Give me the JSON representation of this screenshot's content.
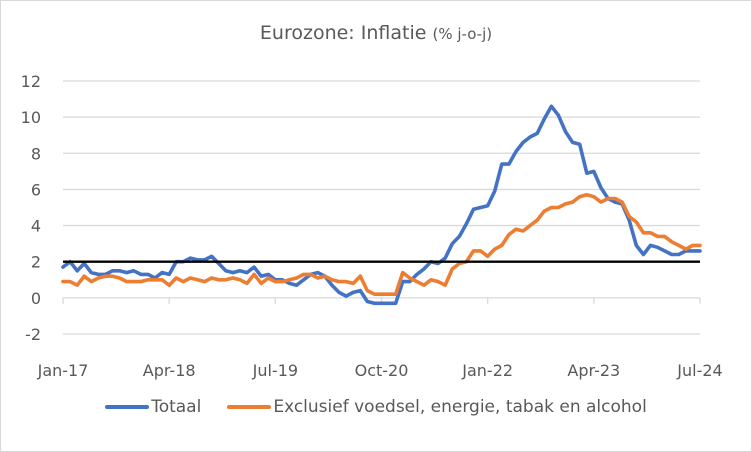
{
  "chart_data": {
    "type": "line",
    "title": "Eurozone: Inflatie",
    "title_unit": "(% j-o-j)",
    "xlabel": "",
    "ylabel": "",
    "ylim": [
      -2,
      12
    ],
    "yticks": [
      "-2",
      "0",
      "2",
      "4",
      "6",
      "8",
      "10",
      "12"
    ],
    "ytick_values": [
      -2,
      0,
      2,
      4,
      6,
      8,
      10,
      12
    ],
    "xtick_labels": [
      "Jan-17",
      "Apr-18",
      "Jul-19",
      "Oct-20",
      "Jan-22",
      "Apr-23",
      "Jul-24"
    ],
    "xtick_index": [
      0,
      15,
      30,
      45,
      60,
      75,
      90
    ],
    "grid": true,
    "legend_position": "bottom",
    "reference_line": {
      "value": 2,
      "color": "#000000"
    },
    "x_start": "Jan-17",
    "x_end": "Jul-24",
    "series": [
      {
        "name": "Totaal",
        "color": "#4472c4",
        "values": [
          1.7,
          2.0,
          1.5,
          1.9,
          1.4,
          1.3,
          1.3,
          1.5,
          1.5,
          1.4,
          1.5,
          1.3,
          1.3,
          1.1,
          1.4,
          1.3,
          2.0,
          2.0,
          2.2,
          2.1,
          2.1,
          2.3,
          1.9,
          1.5,
          1.4,
          1.5,
          1.4,
          1.7,
          1.2,
          1.3,
          1.0,
          1.0,
          0.8,
          0.7,
          1.0,
          1.3,
          1.4,
          1.2,
          0.7,
          0.3,
          0.1,
          0.3,
          0.4,
          -0.2,
          -0.3,
          -0.3,
          -0.3,
          -0.3,
          0.9,
          0.9,
          1.3,
          1.6,
          2.0,
          1.9,
          2.2,
          3.0,
          3.4,
          4.1,
          4.9,
          5.0,
          5.1,
          5.9,
          7.4,
          7.4,
          8.1,
          8.6,
          8.9,
          9.1,
          9.9,
          10.6,
          10.1,
          9.2,
          8.6,
          8.5,
          6.9,
          7.0,
          6.1,
          5.5,
          5.3,
          5.2,
          4.3,
          2.9,
          2.4,
          2.9,
          2.8,
          2.6,
          2.4,
          2.4,
          2.6,
          2.6,
          2.6
        ]
      },
      {
        "name": "Exclusief voedsel, energie, tabak en alcohol",
        "color": "#ed7d31",
        "values": [
          0.9,
          0.9,
          0.7,
          1.2,
          0.9,
          1.1,
          1.2,
          1.2,
          1.1,
          0.9,
          0.9,
          0.9,
          1.0,
          1.0,
          1.0,
          0.7,
          1.1,
          0.9,
          1.1,
          1.0,
          0.9,
          1.1,
          1.0,
          1.0,
          1.1,
          1.0,
          0.8,
          1.3,
          0.8,
          1.1,
          0.9,
          0.9,
          1.0,
          1.1,
          1.3,
          1.3,
          1.1,
          1.2,
          1.0,
          0.9,
          0.9,
          0.8,
          1.2,
          0.4,
          0.2,
          0.2,
          0.2,
          0.2,
          1.4,
          1.1,
          0.9,
          0.7,
          1.0,
          0.9,
          0.7,
          1.6,
          1.9,
          2.0,
          2.6,
          2.6,
          2.3,
          2.7,
          2.9,
          3.5,
          3.8,
          3.7,
          4.0,
          4.3,
          4.8,
          5.0,
          5.0,
          5.2,
          5.3,
          5.6,
          5.7,
          5.6,
          5.3,
          5.5,
          5.5,
          5.3,
          4.5,
          4.2,
          3.6,
          3.6,
          3.4,
          3.4,
          3.1,
          2.9,
          2.7,
          2.9,
          2.9
        ]
      }
    ]
  }
}
